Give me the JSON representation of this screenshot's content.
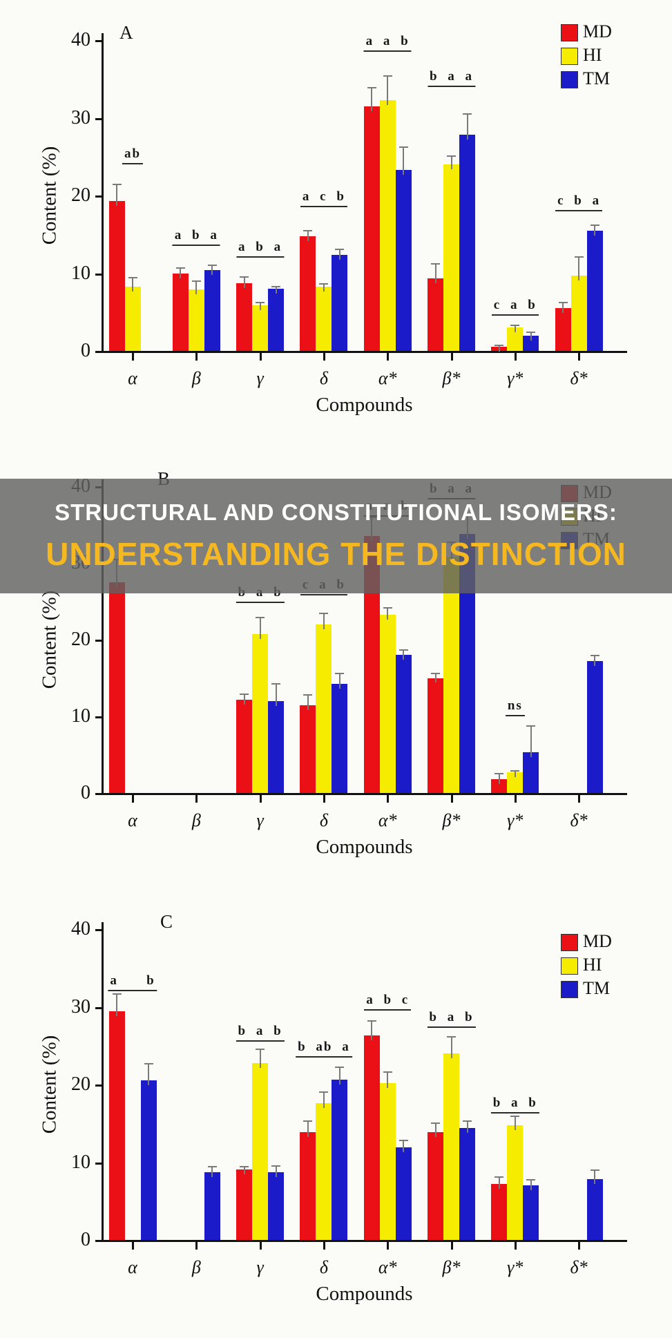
{
  "banner": {
    "line1": "STRUCTURAL AND CONSTITUTIONAL ISOMERS:",
    "line2": "UNDERSTANDING THE DISTINCTION",
    "line1_color": "#ffffff",
    "line2_color": "#f5b821",
    "bg_color": "rgba(98,98,98,0.82)"
  },
  "colors": {
    "MD": "#ea1016",
    "HI": "#f5ec00",
    "TM": "#1b1bca"
  },
  "chart_data": [
    {
      "panel": "A",
      "type": "bar",
      "xlabel": "Compounds",
      "ylabel": "Content (%)",
      "ylim": [
        0,
        40
      ],
      "yticks": [
        0,
        10,
        20,
        30,
        40
      ],
      "grid": false,
      "legend_position": "top-right",
      "categories": [
        "α",
        "β",
        "γ",
        "δ",
        "α*",
        "β*",
        "γ*",
        "δ*"
      ],
      "legend": [
        "MD",
        "HI",
        "TM"
      ],
      "series": [
        {
          "name": "MD",
          "values": [
            19.3,
            10.0,
            8.7,
            14.8,
            31.5,
            9.3,
            0.5,
            5.5
          ],
          "errors": [
            2.2,
            0.8,
            0.9,
            0.8,
            2.5,
            2.0,
            0.3,
            0.8
          ]
        },
        {
          "name": "HI",
          "values": [
            8.3,
            7.9,
            5.9,
            8.3,
            32.3,
            24.0,
            3.0,
            9.7
          ],
          "errors": [
            1.2,
            1.2,
            0.4,
            0.4,
            3.2,
            1.2,
            0.4,
            2.5
          ]
        },
        {
          "name": "TM",
          "values": [
            0,
            10.4,
            8.0,
            12.4,
            23.3,
            27.8,
            2.0,
            15.5
          ],
          "errors": [
            0,
            0.7,
            0.4,
            0.8,
            3.0,
            2.8,
            0.5,
            0.8
          ]
        }
      ],
      "sig_labels": [
        {
          "cat": 0,
          "text": "ab",
          "y": 24
        },
        {
          "cat": 1,
          "text": "a b a",
          "y": 13.5
        },
        {
          "cat": 2,
          "text": "a b a",
          "y": 12
        },
        {
          "cat": 3,
          "text": "a c b",
          "y": 18.5
        },
        {
          "cat": 4,
          "text": "a a b",
          "y": 38.5
        },
        {
          "cat": 5,
          "text": "b a a",
          "y": 34
        },
        {
          "cat": 6,
          "text": "c a b",
          "y": 4.5
        },
        {
          "cat": 7,
          "text": "c b a",
          "y": 18
        }
      ]
    },
    {
      "panel": "B",
      "type": "bar",
      "xlabel": "Compounds",
      "ylabel": "Content (%)",
      "ylim": [
        0,
        40
      ],
      "yticks": [
        0,
        10,
        20,
        30,
        40
      ],
      "grid": false,
      "legend_position": "top-right",
      "categories": [
        "α",
        "β",
        "γ",
        "δ",
        "α*",
        "β*",
        "γ*",
        "δ*"
      ],
      "legend": [
        "MD",
        "HI",
        "TM"
      ],
      "series": [
        {
          "name": "MD",
          "values": [
            27.5,
            0,
            12.2,
            11.4,
            33.5,
            15.0,
            1.8,
            0
          ],
          "errors": [
            3.0,
            0,
            0.8,
            1.5,
            2.5,
            0.7,
            0.8,
            0
          ]
        },
        {
          "name": "HI",
          "values": [
            0,
            0,
            20.7,
            22.0,
            23.2,
            30.8,
            2.7,
            0
          ],
          "errors": [
            0,
            0,
            2.3,
            1.5,
            1.0,
            2.0,
            0.3,
            0
          ]
        },
        {
          "name": "TM",
          "values": [
            0,
            0,
            12.0,
            14.2,
            18.0,
            33.8,
            5.3,
            17.2
          ],
          "errors": [
            0,
            0,
            2.3,
            1.5,
            0.7,
            2.5,
            3.5,
            0.8
          ]
        }
      ],
      "sig_labels": [
        {
          "cat": 2,
          "text": "b a b",
          "y": 24.8
        },
        {
          "cat": 3,
          "text": "c a b",
          "y": 25.8
        },
        {
          "cat": 4,
          "text": "a a b",
          "y": 36
        },
        {
          "cat": 5,
          "text": "b a a",
          "y": 38.3
        },
        {
          "cat": 6,
          "text": "ns",
          "y": 10
        }
      ]
    },
    {
      "panel": "C",
      "type": "bar",
      "xlabel": "Compounds",
      "ylabel": "Content (%)",
      "ylim": [
        0,
        40
      ],
      "yticks": [
        0,
        10,
        20,
        30,
        40
      ],
      "grid": false,
      "legend_position": "top-right",
      "categories": [
        "α",
        "β",
        "γ",
        "δ",
        "α*",
        "β*",
        "γ*",
        "δ*"
      ],
      "legend": [
        "MD",
        "HI",
        "TM"
      ],
      "series": [
        {
          "name": "MD",
          "values": [
            29.4,
            0,
            9.1,
            13.9,
            26.3,
            13.9,
            7.2,
            0
          ],
          "errors": [
            2.3,
            0,
            0.4,
            1.5,
            2.0,
            1.2,
            1.0,
            0
          ]
        },
        {
          "name": "HI",
          "values": [
            0,
            0,
            22.8,
            17.6,
            20.2,
            24.0,
            14.8,
            0
          ],
          "errors": [
            0,
            0,
            1.8,
            1.5,
            1.5,
            2.2,
            1.2,
            0
          ]
        },
        {
          "name": "TM",
          "values": [
            20.5,
            8.7,
            8.7,
            20.6,
            11.9,
            14.4,
            7.0,
            7.8
          ],
          "errors": [
            2.3,
            0.8,
            0.9,
            1.7,
            1.0,
            1.0,
            0.8,
            1.3
          ]
        }
      ],
      "sig_labels": [
        {
          "cat": 0,
          "text": "a   b",
          "y": 32
        },
        {
          "cat": 2,
          "text": "b a b",
          "y": 25.5
        },
        {
          "cat": 3,
          "text": "b ab a",
          "y": 23.5
        },
        {
          "cat": 4,
          "text": "a b c",
          "y": 29.5
        },
        {
          "cat": 5,
          "text": "b a b",
          "y": 27.3
        },
        {
          "cat": 6,
          "text": "b a b",
          "y": 16.3
        }
      ]
    }
  ]
}
